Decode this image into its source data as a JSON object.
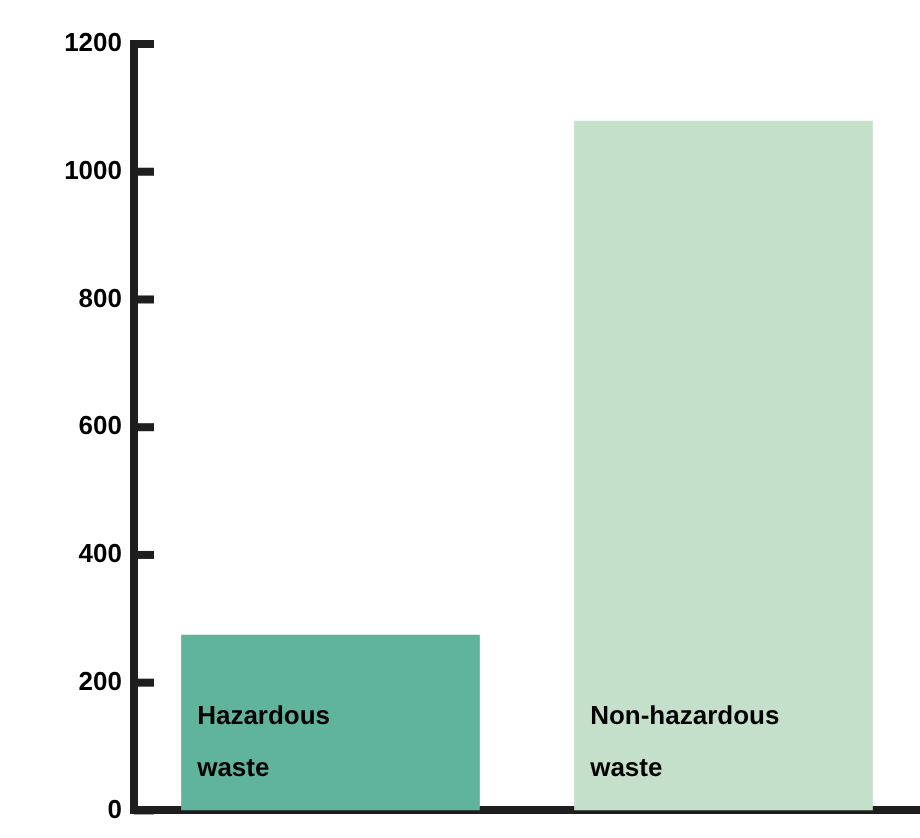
{
  "chart_data": {
    "type": "bar",
    "categories": [
      "Hazardous waste",
      "Non-hazardous waste"
    ],
    "colors": [
      "#60b49c",
      "#c4e0cb"
    ],
    "values": [
      275,
      1080
    ],
    "ylim": [
      0,
      1200
    ],
    "yticks": [
      0,
      200,
      400,
      600,
      800,
      1000,
      1200
    ],
    "grid": false,
    "legend": false
  }
}
